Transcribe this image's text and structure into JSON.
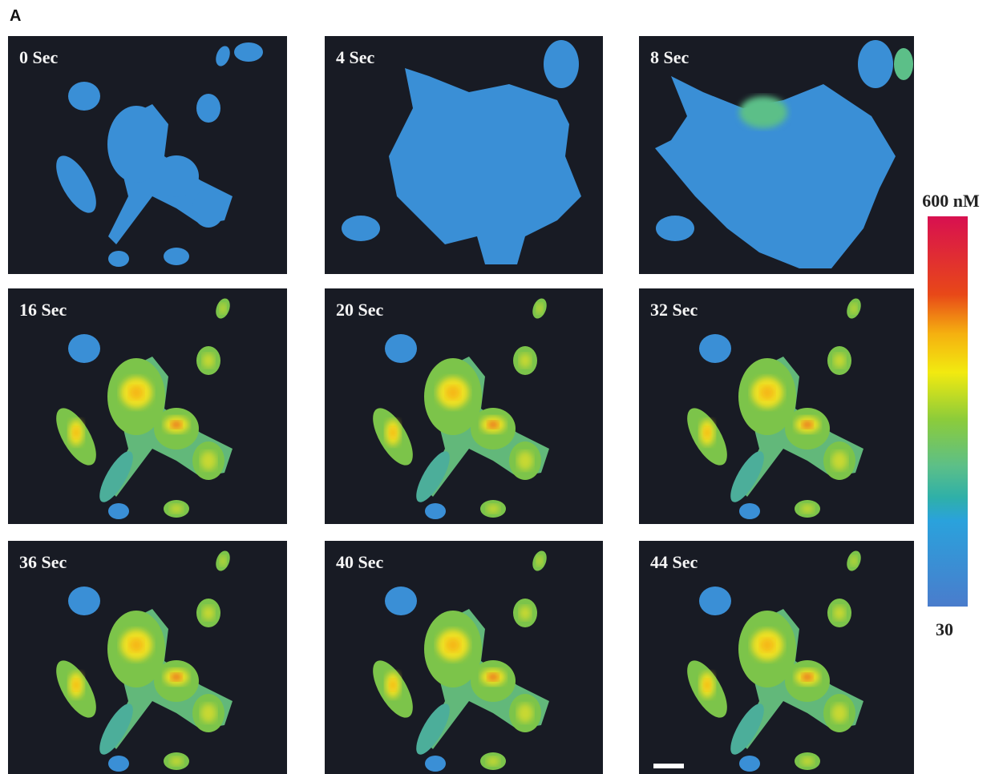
{
  "panel_label": "A",
  "frames": [
    {
      "label": "0 Sec"
    },
    {
      "label": "4 Sec"
    },
    {
      "label": "8 Sec"
    },
    {
      "label": "16 Sec"
    },
    {
      "label": "20 Sec"
    },
    {
      "label": "32 Sec"
    },
    {
      "label": "36 Sec"
    },
    {
      "label": "40 Sec"
    },
    {
      "label": "44 Sec"
    }
  ],
  "colorbar": {
    "max_label": "600 nM",
    "min_label": "30"
  }
}
